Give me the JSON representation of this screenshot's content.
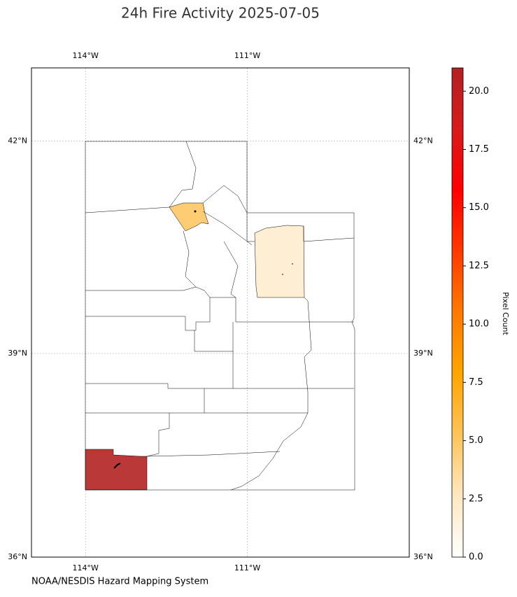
{
  "title": "24h Fire Activity 2025-07-05",
  "source": "NOAA/NESDIS Hazard Mapping System",
  "chart_data": {
    "type": "choropleth",
    "xlim": [
      -115,
      -108
    ],
    "ylim": [
      36,
      43
    ],
    "xticks": [
      {
        "value": -114,
        "label": "114°W"
      },
      {
        "value": -111,
        "label": "111°W"
      }
    ],
    "yticks": [
      {
        "value": 36,
        "label": "36°N"
      },
      {
        "value": 39,
        "label": "39°N"
      },
      {
        "value": 42,
        "label": "42°N"
      }
    ],
    "grid": true,
    "values": [
      21,
      5,
      2
    ],
    "colorbar": {
      "label": "Pixel Count",
      "clim": [
        0,
        21
      ],
      "ticks": [
        {
          "value": 0,
          "label": "0.0"
        },
        2.5,
        {
          "value": 5,
          "label": "5.0"
        },
        7.5,
        {
          "value": 10,
          "label": "10.0"
        },
        12.5,
        {
          "value": 15,
          "label": "15.0"
        },
        17.5,
        {
          "value": 20,
          "label": "20.0"
        }
      ],
      "colors": [
        "#ffffff",
        "#fee8c0",
        "#fec35a",
        "#ffa500",
        "#ff7a00",
        "#ff3a00",
        "#ff0000",
        "#d81a1a",
        "#b22222"
      ]
    }
  }
}
